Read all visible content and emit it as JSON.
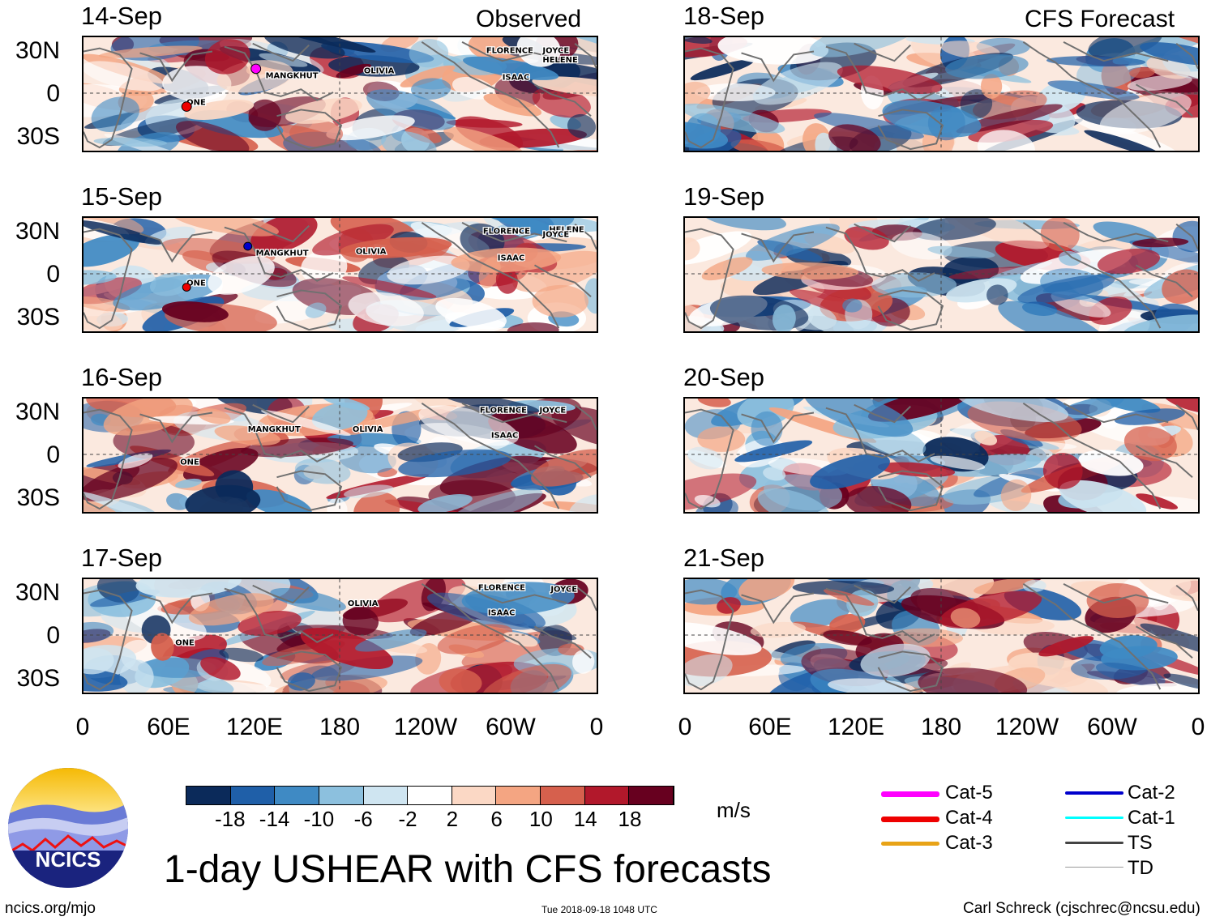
{
  "observed_label": "Observed",
  "forecast_label": "CFS Forecast",
  "observed_panels": [
    {
      "date": "14-Sep"
    },
    {
      "date": "15-Sep"
    },
    {
      "date": "16-Sep"
    },
    {
      "date": "17-Sep"
    }
  ],
  "forecast_panels": [
    {
      "date": "18-Sep"
    },
    {
      "date": "19-Sep"
    },
    {
      "date": "20-Sep"
    },
    {
      "date": "21-Sep"
    }
  ],
  "lat_ticks": [
    "30N",
    "0",
    "30S"
  ],
  "lon_ticks": [
    "0",
    "60E",
    "120E",
    "180",
    "120W",
    "60W",
    "0"
  ],
  "storm_labels": {
    "panel_14": [
      "MANGKHUT",
      "OLIVIA",
      "FLORENCE",
      "JOYCE",
      "HELENE",
      "ISAAC",
      "ONE"
    ],
    "panel_15": [
      "MANGKHUT",
      "OLIVIA",
      "FLORENCE",
      "HELENE",
      "JOYCE",
      "ISAAC",
      "ONE"
    ],
    "panel_16": [
      "MANGKHUT",
      "OLIVIA",
      "FLORENCE",
      "JOYCE",
      "ISAAC",
      "ONE"
    ],
    "panel_17": [
      "OLIVIA",
      "FLORENCE",
      "JOYCE",
      "ISAAC",
      "ONE"
    ]
  },
  "colorbar": {
    "ticks": [
      "-18",
      "-14",
      "-10",
      "-6",
      "-2",
      "2",
      "6",
      "10",
      "14",
      "18"
    ],
    "units": "m/s",
    "colors": [
      "#0b2a5a",
      "#1f5fa8",
      "#3f8ac4",
      "#8cc0de",
      "#cfe5f1",
      "#ffffff",
      "#fbd8c5",
      "#f4a582",
      "#d6604d",
      "#b2182b",
      "#67001f"
    ]
  },
  "legend": {
    "left": [
      {
        "label": "Cat-5",
        "color": "#ff00ff"
      },
      {
        "label": "Cat-4",
        "color": "#ee0000"
      },
      {
        "label": "Cat-3",
        "color": "#e8a317"
      }
    ],
    "right": [
      {
        "label": "Cat-2",
        "color": "#0000cc"
      },
      {
        "label": "Cat-1",
        "color": "#00ffff"
      },
      {
        "label": "TS",
        "color": "#444444"
      },
      {
        "label": "TD",
        "color": "#999999"
      }
    ]
  },
  "title": "1-day USHEAR with CFS forecasts",
  "logo_text": "NCICS",
  "footer": {
    "url": "ncics.org/mjo",
    "timestamp": "Tue 2018-09-18 1048 UTC",
    "credit": "Carl Schreck (cjschrec@ncsu.edu)"
  }
}
